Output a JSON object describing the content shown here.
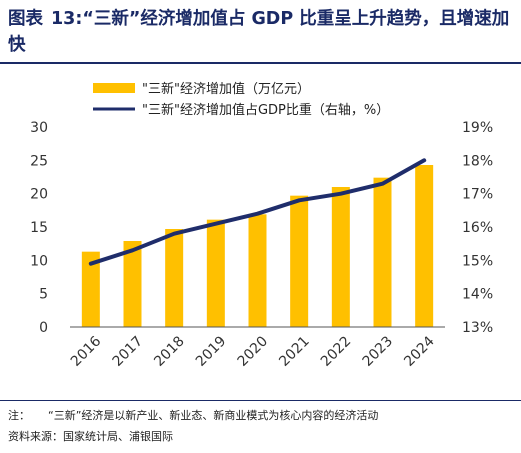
{
  "title": {
    "prefix": "图表",
    "text": "13:“三新”经济增加值占 GDP 比重呈上升趋势，且增速加快"
  },
  "chart_data": {
    "type": "bar+line",
    "categories": [
      "2016",
      "2017",
      "2018",
      "2019",
      "2020",
      "2021",
      "2022",
      "2023",
      "2024"
    ],
    "series": [
      {
        "name": "\"三新\"经济增加值（万亿元）",
        "type": "bar",
        "axis": "left",
        "color": "#ffc000",
        "values": [
          11.3,
          12.9,
          14.7,
          16.1,
          16.9,
          19.7,
          21.0,
          22.4,
          24.3
        ]
      },
      {
        "name": "\"三新\"经济增加值占GDP比重（右轴，%）",
        "type": "line",
        "axis": "right",
        "color": "#1f2d6b",
        "values": [
          14.9,
          15.3,
          15.8,
          16.1,
          16.4,
          16.8,
          17.0,
          17.3,
          18.0
        ]
      }
    ],
    "y_left": {
      "min": 0,
      "max": 30,
      "ticks": [
        "0",
        "5",
        "10",
        "15",
        "20",
        "25",
        "30"
      ]
    },
    "y_right": {
      "min": 13,
      "max": 19,
      "ticks": [
        "13%",
        "14%",
        "15%",
        "16%",
        "17%",
        "18%",
        "19%"
      ]
    },
    "legend_position": "top-left",
    "grid": false
  },
  "footer": {
    "note_label": "注：",
    "note_text": "“三新”经济是以新产业、新业态、新商业模式为核心内容的经济活动",
    "source_text": "资料来源：国家统计局、浦银国际"
  }
}
